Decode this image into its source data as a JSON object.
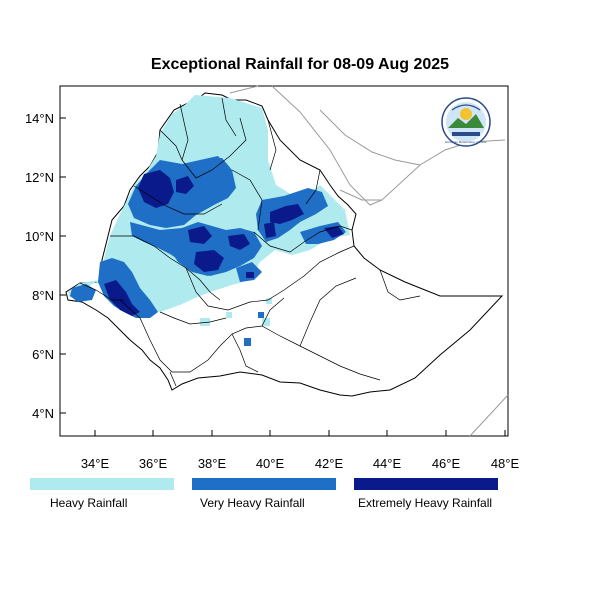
{
  "title": "Exceptional Rainfall for 08-09 Aug 2025",
  "x_ticks": [
    "34°E",
    "36°E",
    "38°E",
    "40°E",
    "42°E",
    "44°E",
    "46°E",
    "48°E"
  ],
  "y_ticks": [
    "4°N",
    "6°N",
    "8°N",
    "10°N",
    "12°N",
    "14°N"
  ],
  "legend": [
    {
      "label": "Heavy Rainfall",
      "color": "#aeeaee"
    },
    {
      "label": "Very Heavy Rainfall",
      "color": "#1f6fc7"
    },
    {
      "label": "Extremely Heavy Rainfall",
      "color": "#0a1a8a"
    }
  ],
  "colors": {
    "heavy": "#aeeaee",
    "very_heavy": "#1f6fc7",
    "extreme": "#0a1a8a"
  },
  "logo": {
    "text": "Ethiopian Meteorology Institute"
  }
}
